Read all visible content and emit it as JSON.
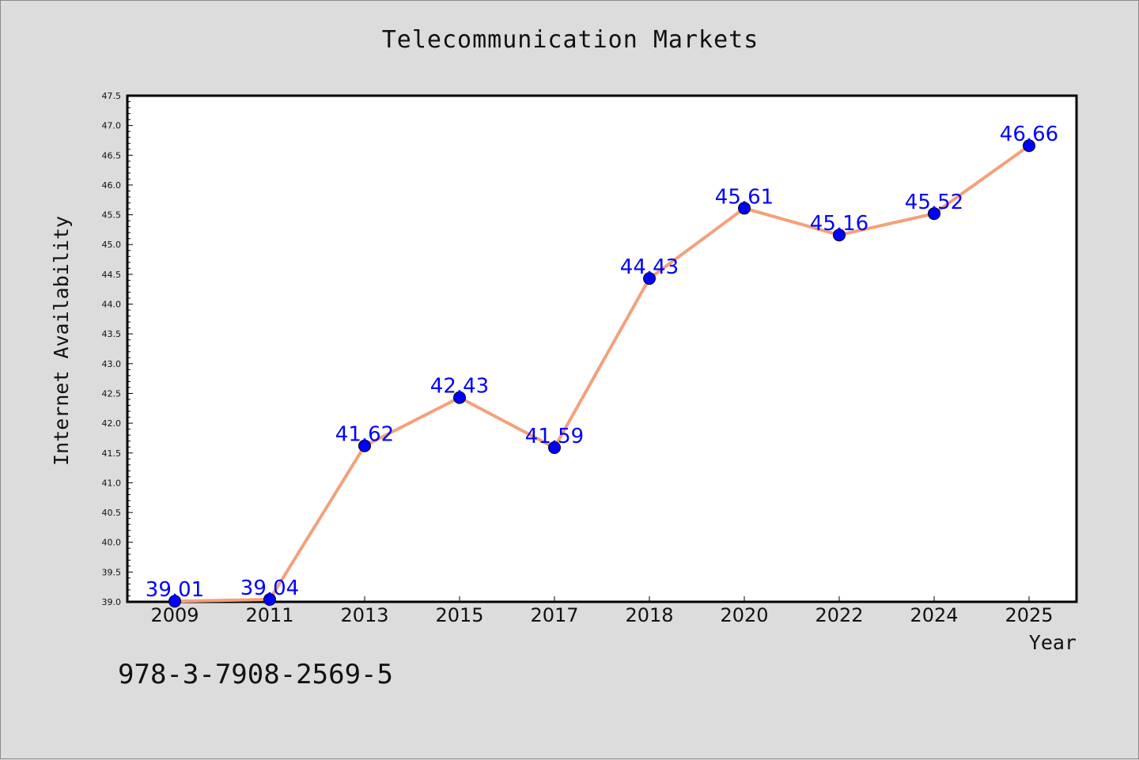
{
  "chart_data": {
    "type": "line",
    "title": "Telecommunication Markets",
    "xlabel": "Year",
    "ylabel": "Internet Availability",
    "categories": [
      "2009",
      "2011",
      "2013",
      "2015",
      "2017",
      "2018",
      "2020",
      "2022",
      "2024",
      "2025"
    ],
    "series": [
      {
        "values": [
          39.01,
          39.04,
          41.62,
          42.43,
          41.59,
          44.43,
          45.61,
          45.16,
          45.52,
          46.66
        ],
        "line_color": "#f4a07a",
        "marker_color": "#0000ff"
      }
    ],
    "data_labels": [
      "39.01",
      "39.04",
      "41.62",
      "42.43",
      "41.59",
      "44.43",
      "45.61",
      "45.16",
      "45.52",
      "46.66"
    ],
    "ylim": [
      39.0,
      47.5
    ],
    "yticks": [
      "39.0",
      "39.5",
      "40.0",
      "40.5",
      "41.0",
      "41.5",
      "42.0",
      "42.5",
      "43.0",
      "43.5",
      "44.0",
      "44.5",
      "45.0",
      "45.5",
      "46.0",
      "46.5",
      "47.0",
      "47.5"
    ],
    "grid": false,
    "legend": "none",
    "label_color": "#0000ff"
  },
  "footer": {
    "isbn": "978-3-7908-2569-5"
  }
}
